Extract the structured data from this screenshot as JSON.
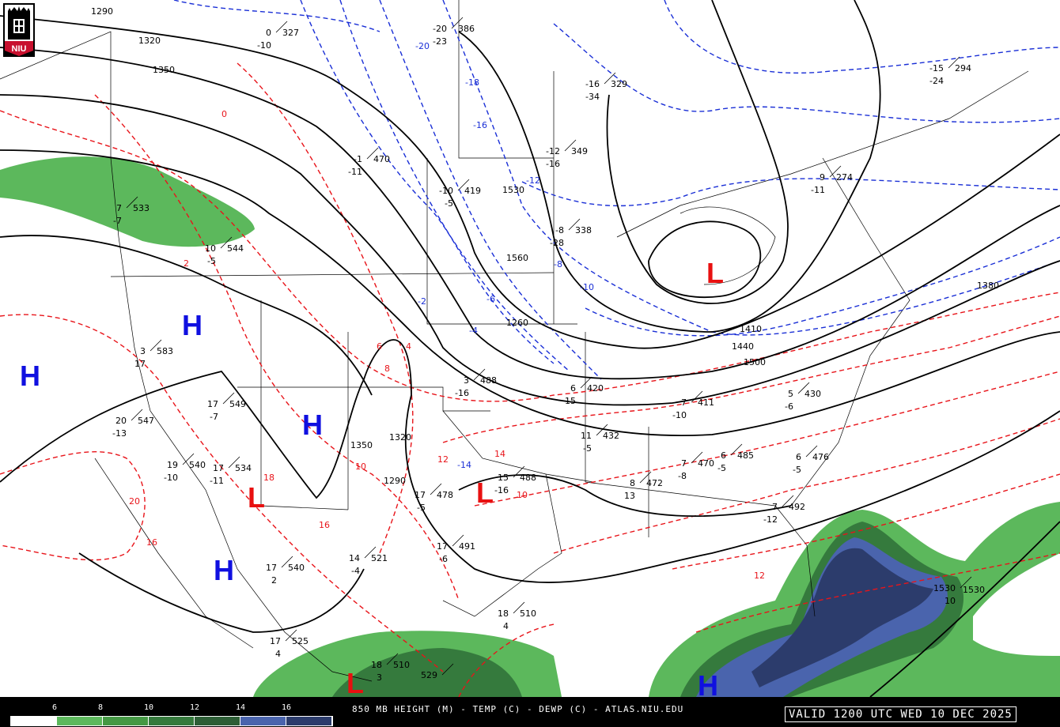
{
  "title": "850 MB HEIGHT (M) - TEMP (C) - DEWP (C) - ATLAS.NIU.EDU",
  "valid_time": "VALID 1200 UTC WED 10 DEC 2025",
  "logo": {
    "text": "NIU",
    "color": "#c8102e"
  },
  "dewpoint_scale": {
    "ticks": [
      "6",
      "8",
      "10",
      "12",
      "14",
      "16"
    ],
    "colors": [
      "#ffffff",
      "#5cb85c",
      "#449944",
      "#357a3d",
      "#2d5e36",
      "#4a64ad",
      "#2c3c6c"
    ]
  },
  "colors": {
    "height": "#000000",
    "temp_cold": "#1a2fd6",
    "temp_warm": "#e8141a",
    "high": "#1010e0",
    "low": "#e81010"
  },
  "height_labels": [
    "1290",
    "1320",
    "1350",
    "1380",
    "1410",
    "1440",
    "1500",
    "1530",
    "1560",
    "1260",
    "1290",
    "1320",
    "1350",
    "1530"
  ],
  "temp_labels": [
    "-20",
    "-18",
    "-16",
    "-14",
    "-12",
    "-10",
    "-8",
    "-6",
    "-4",
    "-2",
    "0",
    "2",
    "4",
    "6",
    "8",
    "10",
    "12",
    "14",
    "16",
    "18",
    "20",
    "16",
    "12",
    "10"
  ],
  "pressure_centers": [
    {
      "type": "H"
    },
    {
      "type": "H"
    },
    {
      "type": "H"
    },
    {
      "type": "H"
    },
    {
      "type": "H"
    },
    {
      "type": "L"
    },
    {
      "type": "L"
    },
    {
      "type": "L"
    },
    {
      "type": "L"
    }
  ],
  "stations": [
    {
      "t": "-1",
      "h": "470",
      "d": "-11"
    },
    {
      "t": "-10",
      "h": "419",
      "d": "-5"
    },
    {
      "t": "-12",
      "h": "349",
      "d": "-16"
    },
    {
      "t": "-16",
      "h": "329",
      "d": "-34"
    },
    {
      "t": "-8",
      "h": "338",
      "d": "-28"
    },
    {
      "t": "9",
      "h": "274",
      "d": "-11"
    },
    {
      "t": "-15",
      "h": "294",
      "d": "-24"
    },
    {
      "t": "3",
      "h": "488",
      "d": "-16"
    },
    {
      "t": "6",
      "h": "420",
      "d": "15"
    },
    {
      "t": "11",
      "h": "432",
      "d": "-5"
    },
    {
      "t": "7",
      "h": "411",
      "d": "-10"
    },
    {
      "t": "5",
      "h": "430",
      "d": "-6"
    },
    {
      "t": "7",
      "h": "470",
      "d": "-8"
    },
    {
      "t": "6",
      "h": "485",
      "d": "-5"
    },
    {
      "t": "8",
      "h": "472",
      "d": "13"
    },
    {
      "t": "15",
      "h": "488",
      "d": "-16"
    },
    {
      "t": "17",
      "h": "478",
      "d": "-5"
    },
    {
      "t": "17",
      "h": "491",
      "d": "-6"
    },
    {
      "t": "14",
      "h": "521",
      "d": "-4"
    },
    {
      "t": "17",
      "h": "540",
      "d": "2"
    },
    {
      "t": "17",
      "h": "525",
      "d": "4"
    },
    {
      "t": "18",
      "h": "510",
      "d": "3"
    },
    {
      "t": "18",
      "h": "510",
      "d": "4"
    },
    {
      "t": "20",
      "h": "547",
      "d": "-13"
    },
    {
      "t": "19",
      "h": "540",
      "d": "-10"
    },
    {
      "t": "17",
      "h": "534",
      "d": "-11"
    },
    {
      "t": "17",
      "h": "549",
      "d": "-7"
    },
    {
      "t": "3",
      "h": "583",
      "d": "17"
    },
    {
      "t": "7",
      "h": "533",
      "d": "-7"
    },
    {
      "t": "10",
      "h": "544",
      "d": "-5"
    },
    {
      "t": "0",
      "h": "327",
      "d": "-10"
    },
    {
      "t": "-20",
      "h": "386",
      "d": "-23"
    },
    {
      "t": "7",
      "h": "492",
      "d": "-12"
    },
    {
      "t": "6",
      "h": "476",
      "d": "-5"
    },
    {
      "t": "529",
      "h": "",
      "d": ""
    },
    {
      "t": "1530",
      "h": "",
      "d": "10"
    }
  ]
}
